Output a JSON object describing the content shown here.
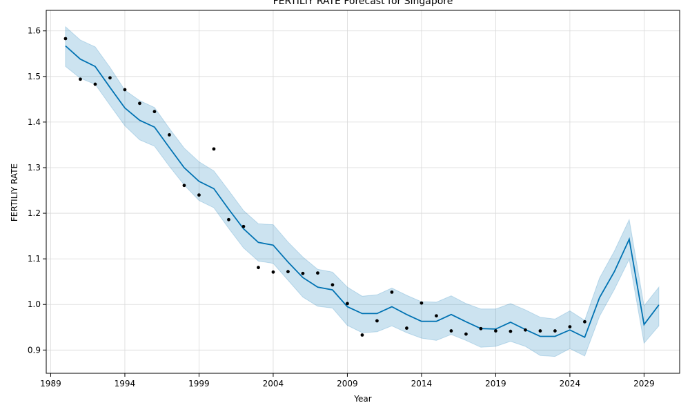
{
  "chart_data": {
    "type": "line",
    "title": "FERTILIY RATE Forecast for Singapore",
    "xlabel": "Year",
    "ylabel": "FERTILIY RATE",
    "xlim": [
      1988.7,
      2031.4
    ],
    "ylim": [
      0.849,
      1.645
    ],
    "x_ticks": [
      1989,
      1994,
      1999,
      2004,
      2009,
      2014,
      2019,
      2024,
      2029
    ],
    "y_ticks": [
      0.9,
      1.0,
      1.1,
      1.2,
      1.3,
      1.4,
      1.5,
      1.6
    ],
    "y_tick_labels": [
      "0.9",
      "1.0",
      "1.1",
      "1.2",
      "1.3",
      "1.4",
      "1.5",
      "1.6"
    ],
    "grid": true,
    "colors": {
      "forecast_line": "#0072b2",
      "band_fill": "#0072b2",
      "points": "#000000",
      "grid": "#d9d9d9"
    },
    "observed": {
      "x": [
        1990,
        1991,
        1992,
        1993,
        1994,
        1995,
        1996,
        1997,
        1998,
        1999,
        2000,
        2001,
        2002,
        2003,
        2004,
        2005,
        2006,
        2007,
        2008,
        2009,
        2010,
        2011,
        2012,
        2013,
        2014,
        2015,
        2016,
        2017,
        2018,
        2019,
        2020,
        2021,
        2022,
        2023,
        2024,
        2025
      ],
      "y": [
        1.583,
        1.494,
        1.483,
        1.497,
        1.471,
        1.441,
        1.423,
        1.372,
        1.261,
        1.24,
        1.341,
        1.186,
        1.171,
        1.081,
        1.071,
        1.072,
        1.068,
        1.069,
        1.043,
        1.002,
        0.933,
        0.964,
        1.027,
        0.948,
        1.003,
        0.975,
        0.942,
        0.935,
        0.947,
        0.942,
        0.941,
        0.944,
        0.942,
        0.942,
        0.951,
        0.962
      ]
    },
    "forecast": {
      "x": [
        1990,
        1991,
        1992,
        1993,
        1994,
        1995,
        1996,
        1997,
        1998,
        1999,
        2000,
        2001,
        2002,
        2003,
        2004,
        2005,
        2006,
        2007,
        2008,
        2009,
        2010,
        2011,
        2012,
        2013,
        2014,
        2015,
        2016,
        2017,
        2018,
        2019,
        2020,
        2021,
        2022,
        2023,
        2024,
        2025,
        2026,
        2027,
        2028,
        2029,
        2030
      ],
      "yhat": [
        1.567,
        1.538,
        1.522,
        1.476,
        1.431,
        1.404,
        1.389,
        1.344,
        1.3,
        1.27,
        1.254,
        1.209,
        1.166,
        1.136,
        1.13,
        1.093,
        1.059,
        1.038,
        1.032,
        0.995,
        0.98,
        0.98,
        0.995,
        0.978,
        0.963,
        0.963,
        0.978,
        0.962,
        0.947,
        0.946,
        0.961,
        0.945,
        0.93,
        0.93,
        0.944,
        0.928,
        1.015,
        1.072,
        1.143,
        0.956,
        0.999
      ],
      "upper": [
        1.609,
        1.58,
        1.565,
        1.52,
        1.47,
        1.447,
        1.432,
        1.386,
        1.343,
        1.313,
        1.293,
        1.25,
        1.206,
        1.177,
        1.175,
        1.137,
        1.104,
        1.077,
        1.071,
        1.038,
        1.018,
        1.021,
        1.036,
        1.02,
        1.006,
        1.005,
        1.019,
        1.002,
        0.99,
        0.99,
        1.002,
        0.988,
        0.972,
        0.968,
        0.986,
        0.965,
        1.058,
        1.117,
        1.186,
        0.997,
        1.038
      ],
      "lower": [
        1.522,
        1.496,
        1.483,
        1.437,
        1.392,
        1.361,
        1.347,
        1.303,
        1.262,
        1.228,
        1.212,
        1.167,
        1.124,
        1.095,
        1.09,
        1.053,
        1.016,
        0.996,
        0.992,
        0.954,
        0.938,
        0.94,
        0.953,
        0.938,
        0.926,
        0.921,
        0.934,
        0.921,
        0.906,
        0.908,
        0.919,
        0.908,
        0.888,
        0.886,
        0.903,
        0.887,
        0.974,
        1.033,
        1.099,
        0.915,
        0.953
      ]
    }
  }
}
